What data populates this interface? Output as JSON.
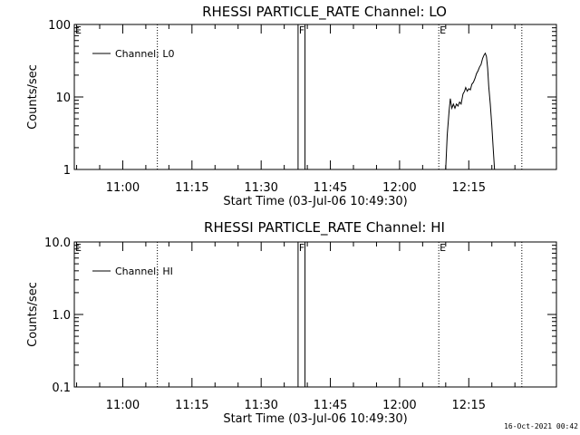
{
  "footer": "16-Oct-2021 00:42",
  "chart_data": [
    {
      "type": "line",
      "title": "RHESSI PARTICLE_RATE Channel: LO",
      "xlabel": "Start Time (03-Jul-06 10:49:30)",
      "ylabel": "Counts/sec",
      "y_scale": "log",
      "ylim": [
        1,
        100
      ],
      "y_ticks": [
        "1",
        "10",
        "100"
      ],
      "xlim": [
        "10:49:30",
        "12:34:00"
      ],
      "x_ticks": [
        "11:00",
        "11:15",
        "11:30",
        "11:45",
        "12:00",
        "12:15"
      ],
      "legend": {
        "placement": "top-left",
        "entries": [
          "Channel: L0"
        ]
      },
      "markers": [
        {
          "label": "E",
          "time": "10:49:30",
          "style": "none"
        },
        {
          "label": "",
          "time": "11:07:30",
          "style": "dotted"
        },
        {
          "label": "F",
          "time": "11:38:00",
          "style": "solid"
        },
        {
          "label": "",
          "time": "11:39:30",
          "style": "solid"
        },
        {
          "label": "E",
          "time": "12:08:30",
          "style": "dotted"
        },
        {
          "label": "",
          "time": "12:26:30",
          "style": "dotted"
        }
      ],
      "series": [
        {
          "name": "Channel: L0",
          "points": [
            [
              "12:10:00",
              1
            ],
            [
              "12:10:20",
              3
            ],
            [
              "12:10:45",
              6.5
            ],
            [
              "12:11:00",
              9.5
            ],
            [
              "12:11:20",
              7
            ],
            [
              "12:11:40",
              8
            ],
            [
              "12:12:00",
              7
            ],
            [
              "12:12:20",
              8
            ],
            [
              "12:12:40",
              7.5
            ],
            [
              "12:13:00",
              8.5
            ],
            [
              "12:13:20",
              8
            ],
            [
              "12:13:45",
              11
            ],
            [
              "12:14:05",
              12
            ],
            [
              "12:14:20",
              13.5
            ],
            [
              "12:14:40",
              12
            ],
            [
              "12:15:00",
              13
            ],
            [
              "12:15:20",
              12.5
            ],
            [
              "12:15:40",
              15
            ],
            [
              "12:16:00",
              16
            ],
            [
              "12:16:20",
              18
            ],
            [
              "12:16:40",
              21
            ],
            [
              "12:17:00",
              23
            ],
            [
              "12:17:20",
              26
            ],
            [
              "12:17:40",
              28
            ],
            [
              "12:18:00",
              34
            ],
            [
              "12:18:20",
              38
            ],
            [
              "12:18:35",
              40
            ],
            [
              "12:18:50",
              36
            ],
            [
              "12:19:05",
              25
            ],
            [
              "12:19:20",
              14
            ],
            [
              "12:19:40",
              8
            ],
            [
              "12:20:00",
              4
            ],
            [
              "12:20:20",
              1.8
            ],
            [
              "12:20:35",
              1
            ]
          ]
        }
      ]
    },
    {
      "type": "line",
      "title": "RHESSI PARTICLE_RATE Channel: HI",
      "xlabel": "Start Time (03-Jul-06 10:49:30)",
      "ylabel": "Counts/sec",
      "y_scale": "log",
      "ylim": [
        0.1,
        10
      ],
      "y_ticks": [
        "0.1",
        "1.0",
        "10.0"
      ],
      "xlim": [
        "10:49:30",
        "12:34:00"
      ],
      "x_ticks": [
        "11:00",
        "11:15",
        "11:30",
        "11:45",
        "12:00",
        "12:15"
      ],
      "legend": {
        "placement": "top-left",
        "entries": [
          "Channel: HI"
        ]
      },
      "markers": [
        {
          "label": "E",
          "time": "10:49:30",
          "style": "none"
        },
        {
          "label": "",
          "time": "11:07:30",
          "style": "dotted"
        },
        {
          "label": "F",
          "time": "11:38:00",
          "style": "solid"
        },
        {
          "label": "",
          "time": "11:39:30",
          "style": "solid"
        },
        {
          "label": "E",
          "time": "12:08:30",
          "style": "dotted"
        },
        {
          "label": "",
          "time": "12:26:30",
          "style": "dotted"
        }
      ],
      "series": [
        {
          "name": "Channel: HI",
          "points": []
        }
      ]
    }
  ]
}
